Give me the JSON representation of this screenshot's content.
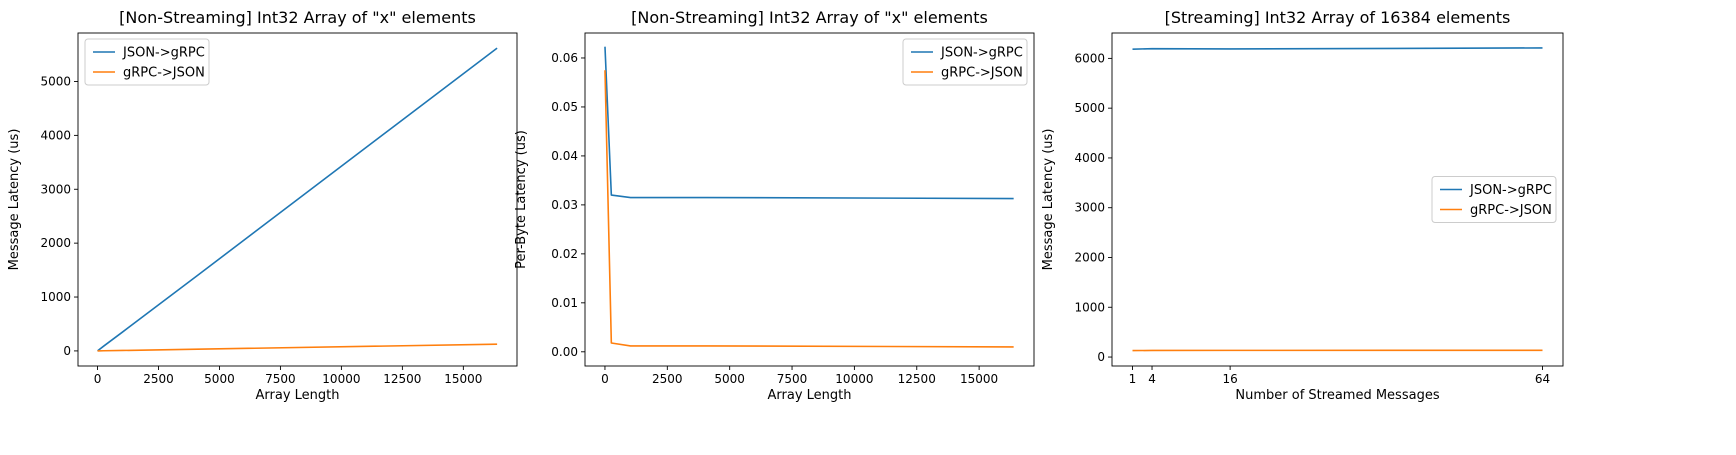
{
  "chart_data": [
    {
      "type": "line",
      "title": "[Non-Streaming] Int32 Array of \"x\" elements",
      "xlabel": "Array Length",
      "ylabel": "Message Latency (us)",
      "xlim": [
        -800,
        17200
      ],
      "ylim": [
        -280,
        5900
      ],
      "xticks": [
        0,
        2500,
        5000,
        7500,
        10000,
        12500,
        15000
      ],
      "xtick_labels": [
        "0",
        "2500",
        "5000",
        "7500",
        "10000",
        "12500",
        "15000"
      ],
      "yticks": [
        0,
        1000,
        2000,
        3000,
        4000,
        5000
      ],
      "ytick_labels": [
        "0",
        "1000",
        "2000",
        "3000",
        "4000",
        "5000"
      ],
      "legend": "upper-left",
      "grid": false,
      "series": [
        {
          "name": "JSON->gRPC",
          "color": "#1f77b4",
          "x": [
            1,
            256,
            1024,
            4096,
            16384
          ],
          "y": [
            1,
            90,
            350,
            1400,
            5620
          ]
        },
        {
          "name": "gRPC->JSON",
          "color": "#ff7f0e",
          "x": [
            1,
            256,
            1024,
            4096,
            16384
          ],
          "y": [
            0.5,
            3,
            8,
            32,
            125
          ]
        }
      ]
    },
    {
      "type": "line",
      "title": "[Non-Streaming] Int32 Array of \"x\" elements",
      "xlabel": "Array Length",
      "ylabel": "Per-Byte Latency (us)",
      "xlim": [
        -800,
        17200
      ],
      "ylim": [
        -0.0029,
        0.0651
      ],
      "xticks": [
        0,
        2500,
        5000,
        7500,
        10000,
        12500,
        15000
      ],
      "xtick_labels": [
        "0",
        "2500",
        "5000",
        "7500",
        "10000",
        "12500",
        "15000"
      ],
      "yticks": [
        0,
        0.01,
        0.02,
        0.03,
        0.04,
        0.05,
        0.06
      ],
      "ytick_labels": [
        "0.00",
        "0.01",
        "0.02",
        "0.03",
        "0.04",
        "0.05",
        "0.06"
      ],
      "legend": "upper-right",
      "grid": false,
      "series": [
        {
          "name": "JSON->gRPC",
          "color": "#1f77b4",
          "x": [
            1,
            256,
            1024,
            4096,
            16384
          ],
          "y": [
            0.0623,
            0.032,
            0.0315,
            0.0315,
            0.0313
          ]
        },
        {
          "name": "gRPC->JSON",
          "color": "#ff7f0e",
          "x": [
            1,
            256,
            1024,
            4096,
            16384
          ],
          "y": [
            0.0575,
            0.0018,
            0.0012,
            0.0012,
            0.001
          ]
        }
      ]
    },
    {
      "type": "line",
      "title": "[Streaming] Int32 Array of 16384 elements",
      "xlabel": "Number of Streamed Messages",
      "ylabel": "Message Latency (us)",
      "xlim": [
        -2.15,
        67.15
      ],
      "ylim": [
        -180,
        6510
      ],
      "xticks": [
        1,
        4,
        16,
        64
      ],
      "xtick_labels": [
        "1",
        "4",
        "16",
        "64"
      ],
      "yticks": [
        0,
        1000,
        2000,
        3000,
        4000,
        5000,
        6000
      ],
      "ytick_labels": [
        "0",
        "1000",
        "2000",
        "3000",
        "4000",
        "5000",
        "6000"
      ],
      "legend": "center-right",
      "grid": false,
      "series": [
        {
          "name": "JSON->gRPC",
          "color": "#1f77b4",
          "x": [
            1,
            4,
            16,
            64
          ],
          "y": [
            6185,
            6195,
            6190,
            6210
          ]
        },
        {
          "name": "gRPC->JSON",
          "color": "#ff7f0e",
          "x": [
            1,
            4,
            16,
            64
          ],
          "y": [
            130,
            132,
            134,
            135
          ]
        }
      ]
    }
  ]
}
